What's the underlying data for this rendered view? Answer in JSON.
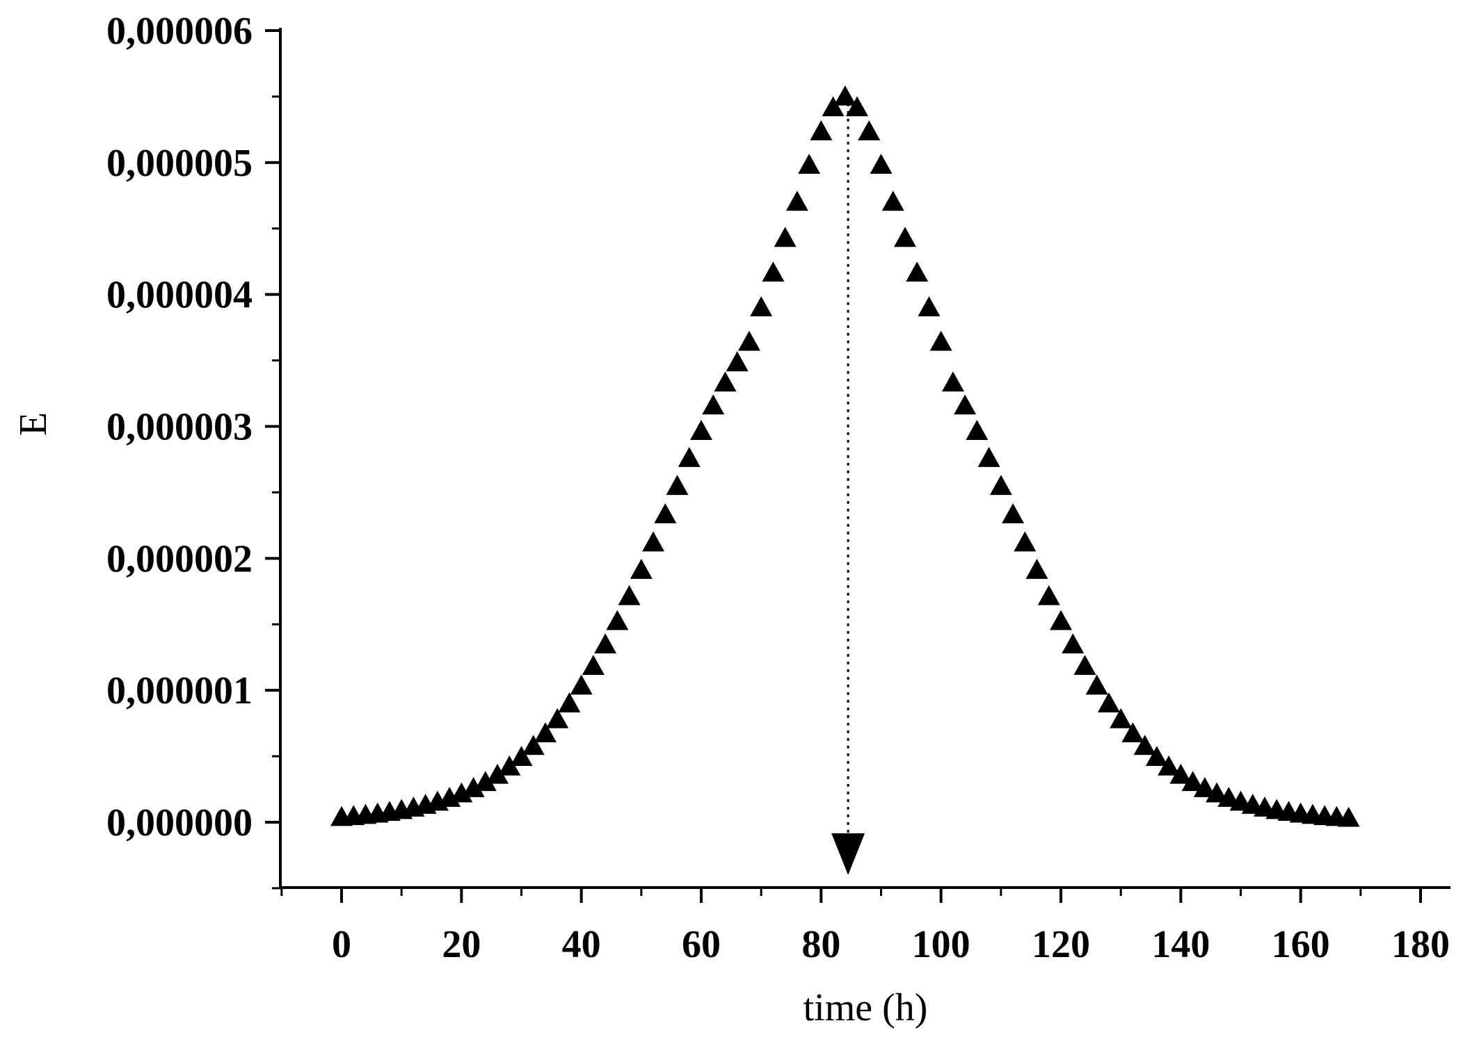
{
  "chart_data": {
    "type": "scatter",
    "title": "",
    "xlabel": "time (h)",
    "ylabel": "E",
    "xlim": [
      -10,
      182
    ],
    "ylim": [
      -5e-07,
      6.1e-06
    ],
    "xticks": [
      0,
      20,
      40,
      60,
      80,
      100,
      120,
      140,
      160,
      180
    ],
    "xtick_labels": [
      "0",
      "20",
      "40",
      "60",
      "80",
      "100",
      "120",
      "140",
      "160",
      "180"
    ],
    "yticks": [
      0,
      1e-06,
      2e-06,
      3e-06,
      4e-06,
      5e-06,
      6e-06
    ],
    "ytick_labels": [
      "0,000000",
      "0,000001",
      "0,000002",
      "0,000003",
      "0,000004",
      "0,000005",
      "0,000006"
    ],
    "grid": false,
    "legend": "none",
    "marker": "triangle-up",
    "marker_color": "#000000",
    "series": [
      {
        "x": [
          0,
          2,
          4,
          6,
          8,
          10,
          12,
          14,
          16,
          18,
          20,
          22,
          24,
          26,
          28,
          30,
          32,
          34,
          36,
          38,
          40,
          42,
          44,
          46,
          48,
          50,
          52,
          54,
          56,
          58,
          60,
          62,
          64,
          66,
          68,
          70,
          72,
          74,
          76,
          78,
          80,
          82,
          84,
          86,
          88,
          90,
          92,
          94,
          96,
          98,
          100,
          102,
          104,
          106,
          108,
          110,
          112,
          114,
          116,
          118,
          120,
          122,
          124,
          126,
          128,
          130,
          132,
          134,
          136,
          138,
          140,
          142,
          144,
          146,
          148,
          150,
          152,
          154,
          156,
          158,
          160,
          162,
          164,
          166,
          168
        ],
        "y": [
          3.9e-08,
          4.6e-08,
          5.5e-08,
          6.5e-08,
          7.8e-08,
          9.2e-08,
          1.1e-07,
          1.31e-07,
          1.55e-07,
          1.84e-07,
          2.18e-07,
          2.58e-07,
          3.04e-07,
          3.59e-07,
          4.22e-07,
          4.94e-07,
          5.78e-07,
          6.73e-07,
          7.8e-07,
          9e-07,
          1.035e-06,
          1.184e-06,
          1.347e-06,
          1.524e-06,
          1.713e-06,
          1.912e-06,
          2.12e-06,
          2.333e-06,
          2.548e-06,
          2.76e-06,
          2.965e-06,
          3.158e-06,
          3.332e-06,
          3.485e-06,
          3.641e-06,
          3.902e-06,
          4.165e-06,
          4.428e-06,
          4.702e-06,
          4.982e-06,
          5.236e-06,
          5.418e-06,
          5.5e-06,
          5.418e-06,
          5.236e-06,
          4.982e-06,
          4.702e-06,
          4.428e-06,
          4.165e-06,
          3.902e-06,
          3.641e-06,
          3.332e-06,
          3.158e-06,
          2.965e-06,
          2.76e-06,
          2.548e-06,
          2.333e-06,
          2.12e-06,
          1.912e-06,
          1.713e-06,
          1.524e-06,
          1.347e-06,
          1.184e-06,
          1.035e-06,
          9e-07,
          7.8e-07,
          6.73e-07,
          5.78e-07,
          4.94e-07,
          4.22e-07,
          3.59e-07,
          3.04e-07,
          2.58e-07,
          2.18e-07,
          1.84e-07,
          1.55e-07,
          1.31e-07,
          1.1e-07,
          9.2e-08,
          7.8e-08,
          6.5e-08,
          5.5e-08,
          4.6e-08,
          3.9e-08,
          3.3e-08
        ]
      }
    ],
    "annotations": [
      {
        "type": "dotted-arrow-down",
        "x": 84.5,
        "from_y": 5.5e-06,
        "to_y": -4e-07
      }
    ]
  }
}
